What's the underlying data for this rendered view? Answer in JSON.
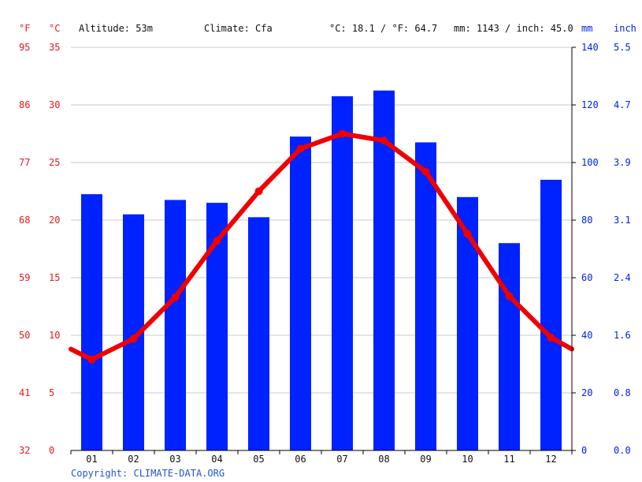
{
  "header": {
    "fahrenheit_unit": "°F",
    "celsius_unit": "°C",
    "altitude": "Altitude: 53m",
    "climate": "Climate: Cfa",
    "temperature_avg": "°C: 18.1 / °F: 64.7",
    "precipitation_total": "mm: 1143 / inch: 45.0",
    "mm_unit": "mm",
    "inch_unit": "inch"
  },
  "footer": {
    "copyright": "Copyright: CLIMATE-DATA.ORG"
  },
  "colors": {
    "temperature": "#f00000",
    "precipitation": "#0022ff",
    "grid": "#c8c8c8"
  },
  "chart_data": {
    "type": "bar+line",
    "categories": [
      "01",
      "02",
      "03",
      "04",
      "05",
      "06",
      "07",
      "08",
      "09",
      "10",
      "11",
      "12"
    ],
    "series": [
      {
        "type": "bar",
        "axis": "right",
        "unit": "mm",
        "values": [
          89,
          82,
          87,
          86,
          81,
          109,
          123,
          125,
          107,
          88,
          72,
          94
        ]
      },
      {
        "type": "line",
        "axis": "left",
        "unit": "°C",
        "values": [
          7.9,
          9.7,
          13.3,
          18.2,
          22.5,
          26.2,
          27.5,
          26.9,
          24.2,
          18.8,
          13.4,
          9.8
        ]
      }
    ],
    "temp_line_edges": {
      "start": 8.8,
      "end": 8.8
    },
    "y_left_celsius": {
      "range": [
        0,
        35
      ],
      "ticks": [
        "0",
        "5",
        "10",
        "15",
        "20",
        "25",
        "30",
        "35"
      ]
    },
    "y_left_fahrenheit": {
      "ticks": [
        "32",
        "41",
        "50",
        "59",
        "68",
        "77",
        "86",
        "95"
      ]
    },
    "y_right_mm": {
      "range": [
        0,
        140
      ],
      "ticks": [
        "0",
        "20",
        "40",
        "60",
        "80",
        "100",
        "120",
        "140"
      ]
    },
    "y_right_inch": {
      "ticks": [
        "0.0",
        "0.8",
        "1.6",
        "2.4",
        "3.1",
        "3.9",
        "4.7",
        "5.5"
      ]
    },
    "grid": true
  }
}
